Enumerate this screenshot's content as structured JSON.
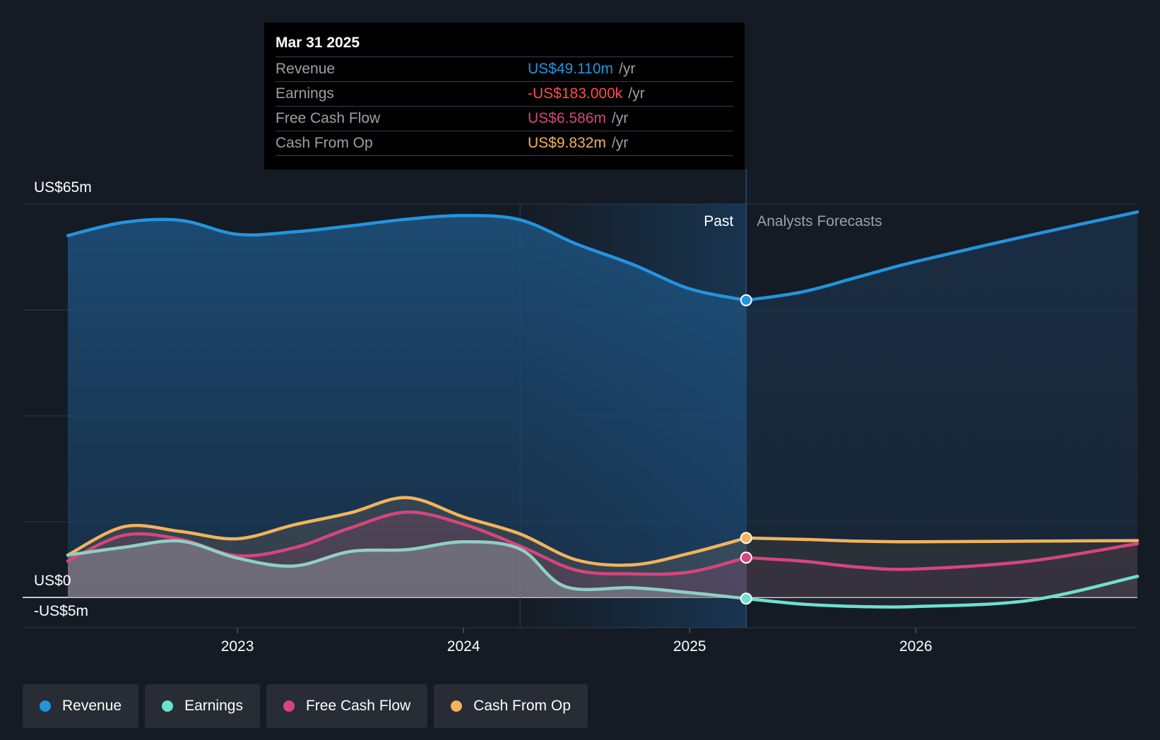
{
  "tooltip": {
    "date": "Mar 31 2025",
    "rows": [
      {
        "label": "Revenue",
        "value": "US$49.110m",
        "unit": "/yr",
        "color": "#2394df"
      },
      {
        "label": "Earnings",
        "value": "-US$183.000k",
        "unit": "/yr",
        "color": "#ff4d4d"
      },
      {
        "label": "Free Cash Flow",
        "value": "US$6.586m",
        "unit": "/yr",
        "color": "#d6457d"
      },
      {
        "label": "Cash From Op",
        "value": "US$9.832m",
        "unit": "/yr",
        "color": "#f2b35c"
      }
    ]
  },
  "legend": [
    {
      "label": "Revenue",
      "color": "#2394df"
    },
    {
      "label": "Earnings",
      "color": "#6ee0d0"
    },
    {
      "label": "Free Cash Flow",
      "color": "#d6457d"
    },
    {
      "label": "Cash From Op",
      "color": "#f2b35c"
    }
  ],
  "chart_data": {
    "type": "line",
    "title": "",
    "xlabel": "",
    "ylabel": "",
    "y_labels": {
      "top": "US$65m",
      "zero": "US$0",
      "bottom": "-US$5m"
    },
    "ylim": [
      -5,
      65
    ],
    "xlim": [
      2022.22,
      2026.98
    ],
    "x_ticks": [
      2023,
      2024,
      2025,
      2026
    ],
    "x_tick_labels": [
      "2023",
      "2024",
      "2025",
      "2026"
    ],
    "past_label": "Past",
    "forecast_label": "Analysts Forecasts",
    "divider_x": 2025.25,
    "highlight_start_x": 2024.25,
    "series": [
      {
        "name": "Revenue",
        "color": "#2394df",
        "past": [
          [
            2022.25,
            59.8
          ],
          [
            2022.5,
            62.0
          ],
          [
            2022.75,
            62.3
          ],
          [
            2023.0,
            60.0
          ],
          [
            2023.25,
            60.4
          ],
          [
            2023.5,
            61.4
          ],
          [
            2023.75,
            62.5
          ],
          [
            2024.0,
            63.1
          ],
          [
            2024.25,
            62.4
          ],
          [
            2024.5,
            58.4
          ],
          [
            2024.75,
            55.0
          ],
          [
            2025.0,
            51.0
          ],
          [
            2025.25,
            49.11
          ]
        ],
        "forecast": [
          [
            2025.25,
            49.11
          ],
          [
            2025.5,
            50.5
          ],
          [
            2025.75,
            53.0
          ],
          [
            2026.0,
            55.5
          ],
          [
            2026.5,
            59.8
          ],
          [
            2026.98,
            63.7
          ]
        ]
      },
      {
        "name": "Earnings",
        "color": "#6ee0d0",
        "past": [
          [
            2022.25,
            7.0
          ],
          [
            2022.5,
            8.3
          ],
          [
            2022.75,
            9.3
          ],
          [
            2023.0,
            6.5
          ],
          [
            2023.25,
            5.2
          ],
          [
            2023.5,
            7.6
          ],
          [
            2023.75,
            7.9
          ],
          [
            2024.0,
            9.2
          ],
          [
            2024.25,
            8.0
          ],
          [
            2024.45,
            1.8
          ],
          [
            2024.75,
            1.6
          ],
          [
            2025.0,
            0.8
          ],
          [
            2025.25,
            -0.183
          ]
        ],
        "forecast": [
          [
            2025.25,
            -0.183
          ],
          [
            2025.5,
            -1.1
          ],
          [
            2025.75,
            -1.5
          ],
          [
            2026.0,
            -1.5
          ],
          [
            2026.5,
            -0.5
          ],
          [
            2026.98,
            3.5
          ]
        ]
      },
      {
        "name": "Free Cash Flow",
        "color": "#d6457d",
        "past": [
          [
            2022.25,
            6.0
          ],
          [
            2022.5,
            10.3
          ],
          [
            2022.75,
            9.6
          ],
          [
            2023.0,
            6.9
          ],
          [
            2023.25,
            8.2
          ],
          [
            2023.5,
            11.5
          ],
          [
            2023.75,
            14.1
          ],
          [
            2024.0,
            12.1
          ],
          [
            2024.25,
            8.5
          ],
          [
            2024.5,
            4.5
          ],
          [
            2024.75,
            3.9
          ],
          [
            2025.0,
            4.2
          ],
          [
            2025.25,
            6.586
          ]
        ],
        "forecast": [
          [
            2025.25,
            6.586
          ],
          [
            2025.5,
            6.0
          ],
          [
            2025.75,
            5.0
          ],
          [
            2026.0,
            4.7
          ],
          [
            2026.5,
            6.0
          ],
          [
            2026.98,
            8.9
          ]
        ]
      },
      {
        "name": "Cash From Op",
        "color": "#f2b35c",
        "past": [
          [
            2022.25,
            7.0
          ],
          [
            2022.5,
            11.7
          ],
          [
            2022.75,
            10.9
          ],
          [
            2023.0,
            9.7
          ],
          [
            2023.25,
            12.0
          ],
          [
            2023.5,
            14.0
          ],
          [
            2023.75,
            16.5
          ],
          [
            2024.0,
            13.3
          ],
          [
            2024.25,
            10.5
          ],
          [
            2024.5,
            6.2
          ],
          [
            2024.75,
            5.4
          ],
          [
            2025.0,
            7.3
          ],
          [
            2025.25,
            9.832
          ]
        ],
        "forecast": [
          [
            2025.25,
            9.832
          ],
          [
            2025.5,
            9.6
          ],
          [
            2025.75,
            9.3
          ],
          [
            2026.0,
            9.2
          ],
          [
            2026.5,
            9.3
          ],
          [
            2026.98,
            9.4
          ]
        ]
      }
    ]
  }
}
